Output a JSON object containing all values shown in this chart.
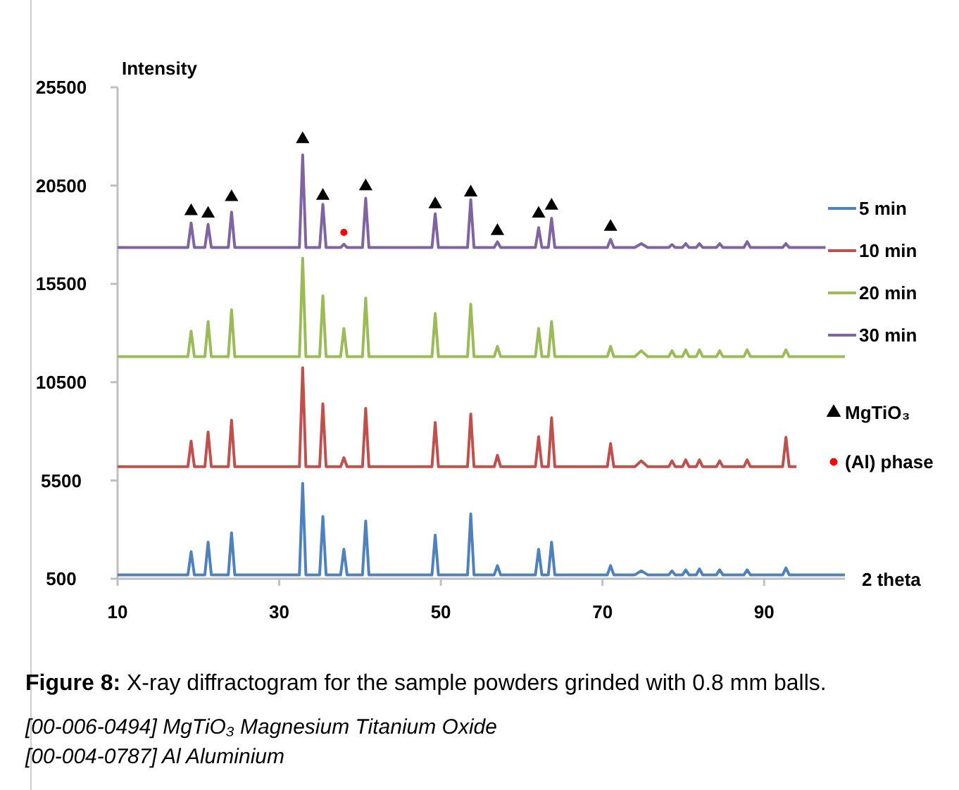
{
  "chart_data": {
    "type": "line",
    "xlabel": "2 theta",
    "ylabel": "Intensity",
    "xlim": [
      10,
      100
    ],
    "ylim": [
      500,
      25500
    ],
    "xticks": [
      10,
      30,
      50,
      70,
      90
    ],
    "yticks": [
      500,
      5500,
      10500,
      15500,
      20500,
      25500
    ],
    "legend": "right",
    "marker": "none",
    "series": [
      {
        "name": "5 min",
        "color": "#4f81bd",
        "x": [
          10,
          18.7,
          19.1,
          19.5,
          20.8,
          21.2,
          21.6,
          23.7,
          24.1,
          24.5,
          32.5,
          32.9,
          33.3,
          35.0,
          35.4,
          35.8,
          37.6,
          38.0,
          38.4,
          40.3,
          40.7,
          41.1,
          48.9,
          49.3,
          49.7,
          53.3,
          53.7,
          54.1,
          56.6,
          57.0,
          57.4,
          61.7,
          62.1,
          62.5,
          63.3,
          63.7,
          64.1,
          70.6,
          71.0,
          71.4,
          74.0,
          74.8,
          75.6,
          78.2,
          78.6,
          79.0,
          79.9,
          80.3,
          80.7,
          81.6,
          82.0,
          82.4,
          84.1,
          84.5,
          84.9,
          87.5,
          87.9,
          88.3,
          92.3,
          92.7,
          93.1,
          100
        ],
        "values": [
          700,
          700,
          1880,
          700,
          700,
          2360,
          700,
          700,
          2840,
          700,
          700,
          5350,
          700,
          700,
          3670,
          700,
          700,
          2000,
          700,
          700,
          3440,
          700,
          700,
          2720,
          700,
          700,
          3800,
          700,
          700,
          1170,
          700,
          700,
          2000,
          700,
          700,
          2360,
          700,
          700,
          1170,
          700,
          700,
          900,
          700,
          700,
          900,
          700,
          700,
          950,
          700,
          700,
          1000,
          700,
          700,
          950,
          700,
          700,
          950,
          700,
          700,
          1050,
          700,
          700
        ]
      },
      {
        "name": "10 min",
        "color": "#c0504d",
        "x": [
          10,
          18.7,
          19.1,
          19.5,
          20.8,
          21.2,
          21.6,
          23.7,
          24.1,
          24.5,
          32.5,
          32.9,
          33.3,
          35.0,
          35.4,
          35.8,
          37.6,
          38.0,
          38.4,
          40.3,
          40.7,
          41.1,
          48.9,
          49.3,
          49.7,
          53.3,
          53.7,
          54.1,
          56.6,
          57.0,
          57.4,
          61.7,
          62.1,
          62.5,
          63.3,
          63.7,
          64.1,
          70.6,
          71.0,
          71.4,
          74.0,
          74.8,
          75.6,
          78.2,
          78.6,
          79.0,
          79.9,
          80.3,
          80.7,
          81.6,
          82.0,
          82.4,
          84.1,
          84.5,
          84.9,
          87.5,
          87.9,
          88.3,
          92.3,
          92.7,
          93.1,
          94
        ],
        "values": [
          6200,
          6200,
          7500,
          6200,
          6200,
          7970,
          6200,
          6200,
          8570,
          6200,
          6200,
          11240,
          6200,
          6200,
          9400,
          6200,
          6200,
          6660,
          6200,
          6200,
          9170,
          6200,
          6200,
          8450,
          6200,
          6200,
          8880,
          6200,
          6200,
          6780,
          6200,
          6200,
          7730,
          6200,
          6200,
          8690,
          6200,
          6200,
          7380,
          6200,
          6200,
          6500,
          6200,
          6200,
          6500,
          6200,
          6200,
          6550,
          6200,
          6200,
          6550,
          6200,
          6200,
          6500,
          6200,
          6200,
          6550,
          6200,
          6200,
          7700,
          6200,
          6200
        ]
      },
      {
        "name": "20 min",
        "color": "#9bbb59",
        "x": [
          10,
          18.7,
          19.1,
          19.5,
          20.8,
          21.2,
          21.6,
          23.7,
          24.1,
          24.5,
          32.5,
          32.9,
          33.3,
          35.0,
          35.4,
          35.8,
          37.6,
          38.0,
          38.4,
          40.3,
          40.7,
          41.1,
          48.9,
          49.3,
          49.7,
          53.3,
          53.7,
          54.1,
          56.6,
          57.0,
          57.4,
          61.7,
          62.1,
          62.5,
          63.3,
          63.7,
          64.1,
          70.6,
          71.0,
          71.4,
          74.0,
          74.8,
          75.6,
          78.2,
          78.6,
          79.0,
          79.9,
          80.3,
          80.7,
          81.6,
          82.0,
          82.4,
          84.1,
          84.5,
          84.9,
          87.5,
          87.9,
          88.3,
          92.3,
          92.7,
          93.1,
          100
        ],
        "values": [
          11800,
          11800,
          13100,
          11800,
          11800,
          13590,
          11800,
          11800,
          14180,
          11800,
          11800,
          16810,
          11800,
          11800,
          14900,
          11800,
          11800,
          13230,
          11800,
          11800,
          14780,
          11800,
          11800,
          13990,
          11800,
          11800,
          14470,
          11800,
          11800,
          12320,
          11800,
          11800,
          13230,
          11800,
          11800,
          13590,
          11800,
          11800,
          12320,
          11800,
          11800,
          12100,
          11800,
          11800,
          12100,
          11800,
          11800,
          12150,
          11800,
          11800,
          12150,
          11800,
          11800,
          12100,
          11800,
          11800,
          12150,
          11800,
          11800,
          12150,
          11800,
          11800
        ]
      },
      {
        "name": "30 min",
        "color": "#8064a2",
        "x": [
          10,
          18.7,
          19.1,
          19.5,
          20.8,
          21.2,
          21.6,
          23.7,
          24.1,
          24.5,
          32.5,
          32.9,
          33.3,
          35.0,
          35.4,
          35.8,
          37.6,
          38.0,
          38.4,
          40.3,
          40.7,
          41.1,
          48.9,
          49.3,
          49.7,
          53.3,
          53.7,
          54.1,
          56.6,
          57.0,
          57.4,
          61.7,
          62.1,
          62.5,
          63.3,
          63.7,
          64.1,
          70.6,
          71.0,
          71.4,
          74.0,
          74.8,
          75.6,
          78.2,
          78.6,
          79.0,
          79.9,
          80.3,
          80.7,
          81.6,
          82.0,
          82.4,
          84.1,
          84.5,
          84.9,
          87.5,
          87.9,
          88.3,
          92.3,
          92.7,
          93.1,
          97.6
        ],
        "values": [
          17350,
          17350,
          18600,
          17350,
          17350,
          18530,
          17350,
          17350,
          19150,
          17350,
          17350,
          22060,
          17350,
          17350,
          19550,
          17350,
          17350,
          17520,
          17350,
          17350,
          19860,
          17350,
          17350,
          19070,
          17350,
          17350,
          19790,
          17350,
          17350,
          17640,
          17350,
          17350,
          18360,
          17350,
          17350,
          18840,
          17350,
          17350,
          17760,
          17350,
          17350,
          17550,
          17350,
          17350,
          17500,
          17350,
          17350,
          17550,
          17350,
          17350,
          17550,
          17350,
          17350,
          17550,
          17350,
          17350,
          17650,
          17350,
          17350,
          17550,
          17350,
          17350
        ]
      },
      {
        "name": "MgTiO₃",
        "type": "scatter",
        "marker": "triangle",
        "color": "#000000",
        "x": [
          19.1,
          21.2,
          24.1,
          32.9,
          35.4,
          40.7,
          49.3,
          53.7,
          57.0,
          62.1,
          63.7,
          71.0
        ],
        "values": [
          19200,
          19070,
          19910,
          22860,
          19980,
          20460,
          19550,
          20150,
          18190,
          19070,
          19480,
          18400
        ]
      },
      {
        "name": "(Al) phase",
        "type": "scatter",
        "marker": "circle",
        "color": "#ff0000",
        "x": [
          38.0
        ],
        "values": [
          18120
        ]
      }
    ],
    "annotations": [
      "Figure 8: X-ray diffractogram for the sample powders grinded with 0.8 mm balls.",
      "[00-006-0494] MgTiO₃ Magnesium Titanium Oxide",
      "[00-004-0787] Al  Aluminium"
    ]
  }
}
